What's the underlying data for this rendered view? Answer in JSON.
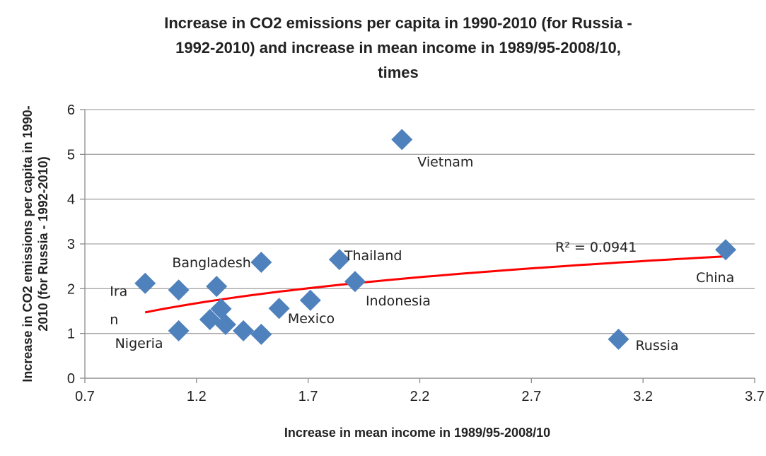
{
  "chart_data": {
    "type": "scatter",
    "title": [
      "Increase in CO2 emissions per capita in 1990-2010 (for Russia -",
      "1992-2010) and increase in mean income in 1989/95-2008/10,",
      "times"
    ],
    "x_label": "Increase in mean income in 1989/95-2008/10",
    "y_label": [
      "Increase in CO2 emissions per capita in 1990-",
      "2010 (for Russia - 1992-2010)"
    ],
    "color": "#4f81bd",
    "x": [
      2.12,
      3.57,
      3.09,
      1.84,
      1.91,
      1.49,
      0.97,
      1.71,
      1.12,
      1.12,
      1.29,
      1.57,
      1.31,
      1.26,
      1.33,
      1.41,
      1.49
    ],
    "values": [
      5.33,
      2.87,
      0.87,
      2.65,
      2.16,
      2.59,
      2.12,
      1.74,
      1.06,
      1.97,
      2.05,
      1.56,
      1.55,
      1.31,
      1.2,
      1.06,
      0.98
    ],
    "point_labels": [
      "Vietnam",
      "China",
      "Russia",
      "Thailand",
      "Indonesia",
      "Bangladesh",
      [
        "Ira",
        "n"
      ],
      "Mexico",
      "Nigeria",
      null,
      null,
      null,
      null,
      null,
      null,
      null,
      null
    ],
    "trendline": {
      "type": "log",
      "color": "#ff0000",
      "a": 1.5,
      "b": 0.96,
      "xrange": [
        0.97,
        3.57
      ],
      "label": "R² = 0.0941"
    },
    "xlim": [
      0.7,
      3.7
    ],
    "xticks": [
      0.7,
      1.2,
      1.7,
      2.2,
      2.7,
      3.2,
      3.7
    ],
    "ylim": [
      0,
      6
    ],
    "yticks": [
      0,
      1,
      2,
      3,
      4,
      5,
      6
    ],
    "grid": true
  }
}
